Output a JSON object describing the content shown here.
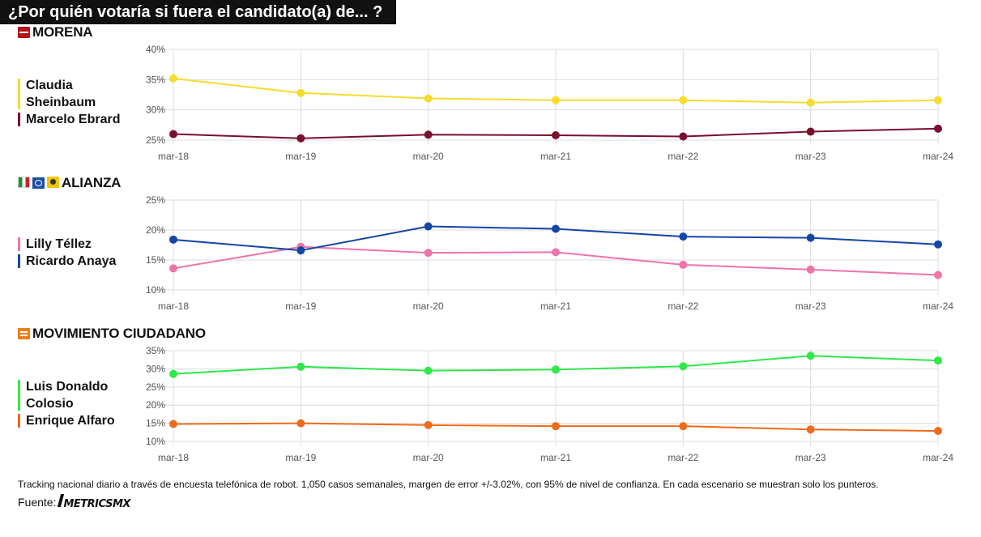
{
  "header": {
    "title": "¿Por quién votaría si fuera el candidato(a) de... ?"
  },
  "footer": {
    "note": "Tracking nacional diario a través de encuesta telefónica de robot. 1,050 casos semanales, margen de error +/-3.02%, con 95% de nivel de confianza. En cada escenario se muestran solo los punteros.",
    "source_label": "Fuente:",
    "source_brand": "METRICSMX"
  },
  "colors": {
    "yellow": "#f5dc2e",
    "maroon": "#7a0f2d",
    "blue": "#1446a6",
    "pink": "#ee74a9",
    "green": "#2fe84a",
    "orange": "#f06a1c",
    "grid": "#dddddd"
  },
  "chart_data": [
    {
      "type": "line",
      "panel": "MORENA",
      "title": "MORENA",
      "logo_icons": [
        "morena-logo-icon"
      ],
      "x": [
        "mar-18",
        "mar-19",
        "mar-20",
        "mar-21",
        "mar-22",
        "mar-23",
        "mar-24"
      ],
      "ylim": [
        25,
        40
      ],
      "yticks": [
        "25%",
        "30%",
        "35%",
        "40%"
      ],
      "ytick_values": [
        25,
        30,
        35,
        40
      ],
      "grid": true,
      "legend_position": "left",
      "series": [
        {
          "name": "Claudia Sheinbaum",
          "color": "#f5dc2e",
          "values": [
            35.2,
            32.8,
            31.9,
            31.6,
            31.6,
            31.2,
            31.6
          ]
        },
        {
          "name": "Marcelo Ebrard",
          "color": "#7a0f2d",
          "values": [
            26.0,
            25.3,
            25.9,
            25.8,
            25.6,
            26.4,
            26.9
          ]
        }
      ]
    },
    {
      "type": "line",
      "panel": "ALIANZA",
      "title": "ALIANZA",
      "logo_icons": [
        "pri-logo-icon",
        "pan-logo-icon",
        "prd-logo-icon"
      ],
      "x": [
        "mar-18",
        "mar-19",
        "mar-20",
        "mar-21",
        "mar-22",
        "mar-23",
        "mar-24"
      ],
      "ylim": [
        10,
        25
      ],
      "yticks": [
        "10%",
        "15%",
        "20%",
        "25%"
      ],
      "ytick_values": [
        10,
        15,
        20,
        25
      ],
      "grid": true,
      "legend_position": "left",
      "series": [
        {
          "name": "Lilly Téllez",
          "color": "#ee74a9",
          "values": [
            13.6,
            17.2,
            16.2,
            16.3,
            14.2,
            13.4,
            12.5
          ]
        },
        {
          "name": "Ricardo Anaya",
          "color": "#1446a6",
          "values": [
            18.4,
            16.6,
            20.6,
            20.2,
            18.9,
            18.7,
            17.6
          ]
        }
      ]
    },
    {
      "type": "line",
      "panel": "MOVIMIENTO CIUDADANO",
      "title": "MOVIMIENTO CIUDADANO",
      "logo_icons": [
        "mc-logo-icon"
      ],
      "x": [
        "mar-18",
        "mar-19",
        "mar-20",
        "mar-21",
        "mar-22",
        "mar-23",
        "mar-24"
      ],
      "ylim": [
        10,
        35
      ],
      "yticks": [
        "10%",
        "15%",
        "20%",
        "25%",
        "30%",
        "35%"
      ],
      "ytick_values": [
        10,
        15,
        20,
        25,
        30,
        35
      ],
      "grid": true,
      "legend_position": "left",
      "series": [
        {
          "name": "Luis Donaldo Colosio",
          "color": "#2fe84a",
          "values": [
            28.6,
            30.6,
            29.5,
            29.8,
            30.7,
            33.6,
            32.3
          ]
        },
        {
          "name": "Enrique Alfaro",
          "color": "#f06a1c",
          "values": [
            14.8,
            15.0,
            14.5,
            14.2,
            14.2,
            13.3,
            12.9
          ]
        }
      ]
    }
  ]
}
